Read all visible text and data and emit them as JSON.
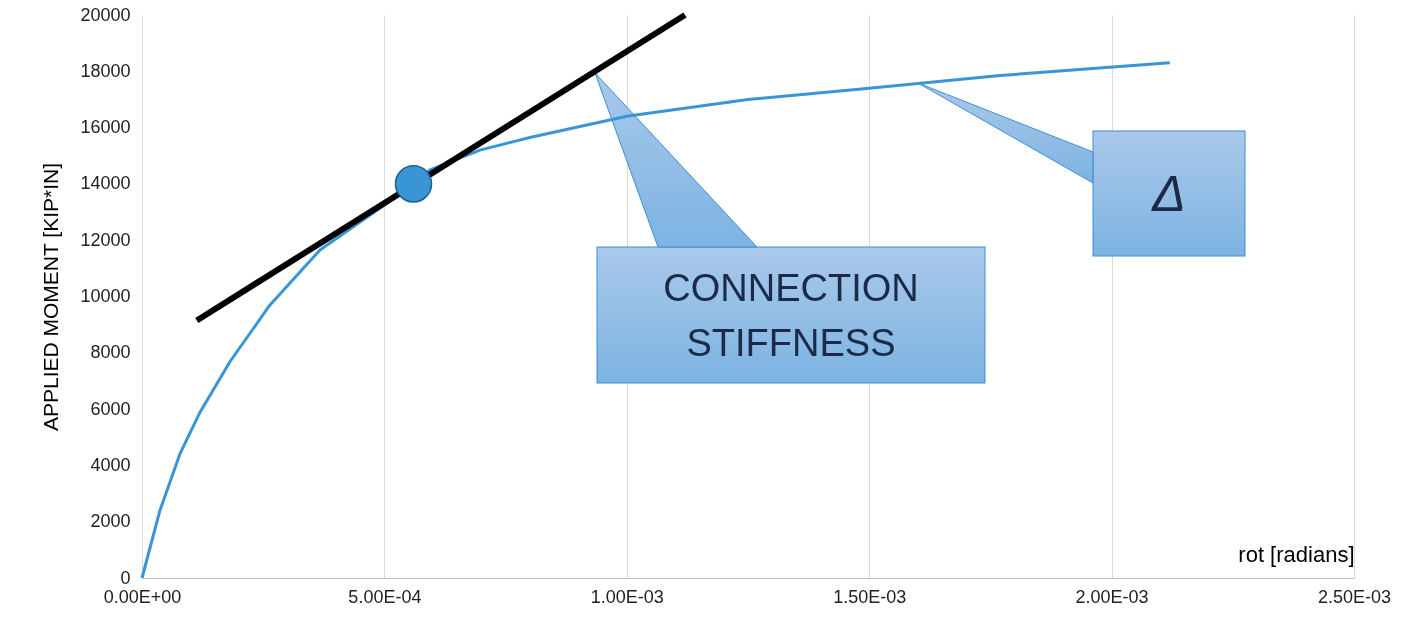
{
  "chart_data": {
    "type": "line",
    "xlabel": "rot [radians]",
    "ylabel": "APPLIED MOMENT [KIP*IN]",
    "xlim": [
      0,
      0.0025
    ],
    "xticks": [
      {
        "value": 0,
        "label": "0.00E+00"
      },
      {
        "value": 0.0005,
        "label": "5.00E-04"
      },
      {
        "value": 0.001,
        "label": "1.00E-03"
      },
      {
        "value": 0.0015,
        "label": "1.50E-03"
      },
      {
        "value": 0.002,
        "label": "2.00E-03"
      },
      {
        "value": 0.0025,
        "label": "2.50E-03"
      }
    ],
    "ylim": [
      0,
      20000
    ],
    "yticks": [
      0,
      2000,
      4000,
      6000,
      8000,
      10000,
      12000,
      14000,
      16000,
      18000,
      20000
    ],
    "grid": "x",
    "series": [
      {
        "color": "#3a95d6",
        "x": [
          0,
          3.7e-05,
          7.8e-05,
          0.00012,
          0.000182,
          0.000264,
          0.000367,
          0.0005,
          0.000594,
          0.000697,
          0.0008,
          0.001,
          0.00125,
          0.0015,
          0.00177,
          0.00212
        ],
        "values": [
          0,
          2400,
          4400,
          5900,
          7700,
          9700,
          11650,
          13250,
          14500,
          15200,
          15650,
          16400,
          17000,
          17400,
          17850,
          18300
        ]
      },
      {
        "type": "line",
        "color": "#000000",
        "x": [
          0.000113,
          0.00112
        ],
        "values": [
          9150,
          20000
        ]
      },
      {
        "type": "scatter",
        "marker": "circle",
        "color": "#3a95d6",
        "x": [
          0.00056
        ],
        "values": [
          14000
        ]
      }
    ],
    "annotations": [
      "CONNECTION STIFFNESS",
      "Δ"
    ]
  }
}
